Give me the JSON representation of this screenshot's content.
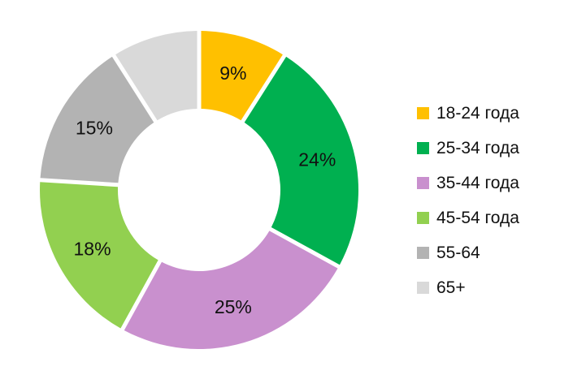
{
  "chart_data": {
    "type": "pie",
    "variant": "donut",
    "categories": [
      "18-24 года",
      "25-34 года",
      "35-44 года",
      "45-54 года",
      "55-64",
      "65+"
    ],
    "values": [
      9,
      24,
      25,
      18,
      15,
      9
    ],
    "data_labels": [
      "9%",
      "24%",
      "25%",
      "18%",
      "15%",
      ""
    ],
    "colors": [
      "#FFC000",
      "#00B050",
      "#C990CE",
      "#92D050",
      "#B3B3B3",
      "#D9D9D9"
    ],
    "title": "",
    "legend_position": "right"
  }
}
